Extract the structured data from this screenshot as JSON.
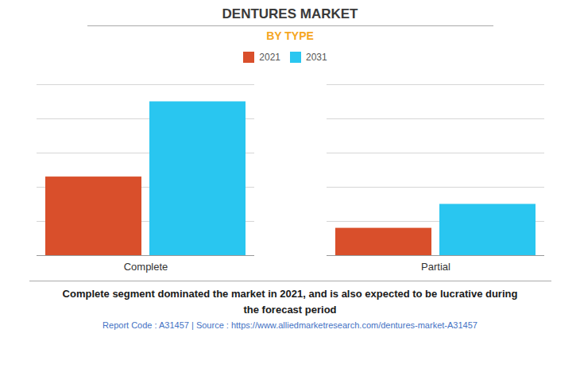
{
  "chart_data": {
    "type": "bar",
    "title": "DENTURES MARKET",
    "subtitle": "BY TYPE",
    "categories": [
      "Complete",
      "Partial"
    ],
    "series": [
      {
        "name": "2021",
        "color": "#D94F2B",
        "values": [
          0.46,
          0.16
        ]
      },
      {
        "name": "2031",
        "color": "#29C6F0",
        "values": [
          0.9,
          0.3
        ]
      }
    ],
    "ylim": [
      0,
      1
    ],
    "yticks": [
      0,
      0.2,
      0.4,
      0.6,
      0.8,
      1
    ],
    "grid": true,
    "legend": "top",
    "tick_labels": "x",
    "annotations": [
      "Complete segment dominated the market in 2021, and is also expected to be lucrative during\nthe forecast period",
      "Report Code : A31457  |  Source : https://www.alliedmarketresearch.com/dentures-market-A31457"
    ]
  }
}
